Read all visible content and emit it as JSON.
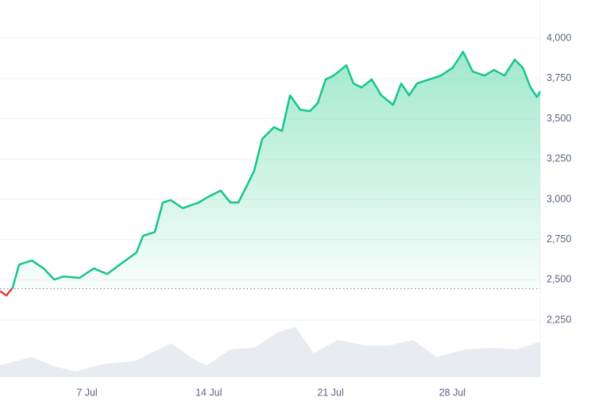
{
  "chart_data": {
    "type": "line",
    "x": [
      2.0,
      2.37,
      2.73,
      3.1,
      3.83,
      4.51,
      5.11,
      5.65,
      6.57,
      7.39,
      8.16,
      9.08,
      9.85,
      10.22,
      10.9,
      11.36,
      11.82,
      12.5,
      13.42,
      13.96,
      14.69,
      15.24,
      15.7,
      16.16,
      16.61,
      17.07,
      17.75,
      18.21,
      18.67,
      19.26,
      19.81,
      20.26,
      20.72,
      21.18,
      21.91,
      22.32,
      22.78,
      23.37,
      23.92,
      24.6,
      25.06,
      25.52,
      25.97,
      26.66,
      27.34,
      28.03,
      28.62,
      29.17,
      29.85,
      30.4,
      31.0,
      31.59,
      32.05,
      32.5,
      32.87,
      33.05
    ],
    "values": [
      2430,
      2403,
      2452,
      2595,
      2620,
      2571,
      2502,
      2521,
      2512,
      2571,
      2536,
      2610,
      2670,
      2773,
      2797,
      2980,
      2995,
      2945,
      2980,
      3015,
      3054,
      2980,
      2980,
      3078,
      3177,
      3374,
      3448,
      3423,
      3645,
      3556,
      3547,
      3596,
      3744,
      3768,
      3832,
      3719,
      3694,
      3744,
      3645,
      3586,
      3719,
      3645,
      3719,
      3744,
      3768,
      3817,
      3916,
      3793,
      3768,
      3803,
      3768,
      3867,
      3817,
      3694,
      3635,
      3670
    ],
    "baseline": 2445,
    "up_color": "#16c784",
    "down_color": "#ea3943",
    "xlim": [
      2,
      33.05
    ],
    "xticks": [
      {
        "value": 7,
        "label": "7 Jul"
      },
      {
        "value": 14,
        "label": "14 Jul"
      },
      {
        "value": 21,
        "label": "21 Jul"
      },
      {
        "value": 28,
        "label": "28 Jul"
      }
    ],
    "ylim": [
      1896,
      4237
    ],
    "yticks": [
      {
        "value": 2250,
        "label": "2,250"
      },
      {
        "value": 2500,
        "label": "2,500"
      },
      {
        "value": 2750,
        "label": "2,750"
      },
      {
        "value": 3000,
        "label": "3,000"
      },
      {
        "value": 3250,
        "label": "3,250"
      },
      {
        "value": 3500,
        "label": "3,500"
      },
      {
        "value": 3750,
        "label": "3,750"
      },
      {
        "value": 4000,
        "label": "4,000"
      }
    ],
    "grid": true,
    "volume": {
      "axis": "y2",
      "color": "#e8ebef",
      "x": [
        2,
        3.83,
        5.2,
        6.34,
        7.94,
        9.76,
        11.82,
        12.96,
        13.87,
        15.24,
        16.61,
        17.98,
        18.99,
        20.04,
        21.41,
        23.0,
        24.37,
        25.74,
        27.11,
        28.71,
        30.31,
        31.68,
        33.05
      ],
      "values": [
        21,
        36,
        19,
        10,
        24,
        29,
        61,
        36,
        21,
        50,
        53,
        81,
        90,
        43,
        67,
        57,
        57,
        67,
        36,
        50,
        53,
        50,
        64
      ]
    },
    "y2lim": [
      0,
      100
    ]
  }
}
